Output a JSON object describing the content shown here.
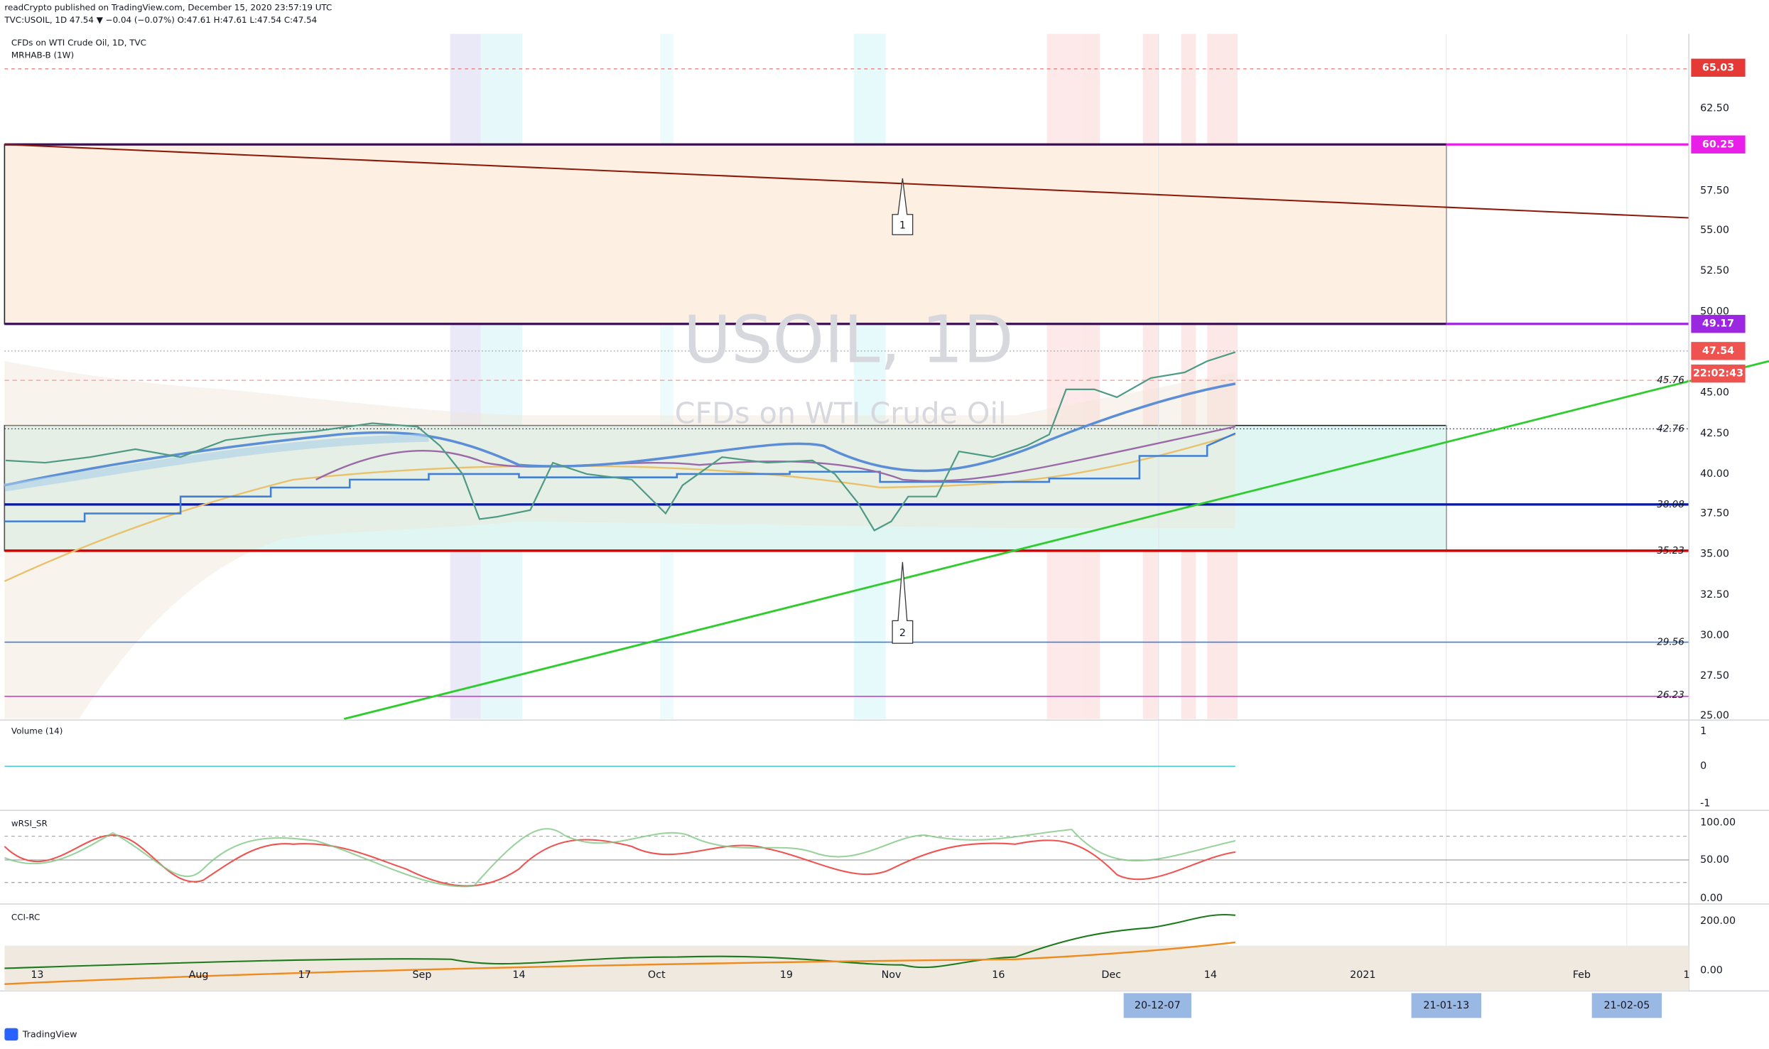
{
  "header": {
    "publisher": "readCrypto published on TradingView.com, December 15, 2020 23:57:19 UTC",
    "symbol_line": "TVC:USOIL, 1D  47.54  ▼ −0.04 (−0.07%)  O:47.61  H:47.61  L:47.54  C:47.54"
  },
  "legend": {
    "title": "CFDs on WTI Crude Oil, 1D, TVC",
    "indicator": "MRHAB-B (1W)"
  },
  "watermark": {
    "symbol": "USOIL, 1D",
    "name": "CFDs on WTI Crude Oil"
  },
  "callouts": [
    "1",
    "2"
  ],
  "price_axis": {
    "ticks": [
      "62.50",
      "57.50",
      "55.00",
      "52.50",
      "50.00",
      "45.00",
      "42.50",
      "40.00",
      "37.50",
      "35.00",
      "32.50",
      "30.00",
      "27.50",
      "25.00"
    ],
    "badges": [
      "65.03",
      "60.25",
      "49.17",
      "47.54",
      "22:02:43"
    ],
    "level_labels": [
      "45.76",
      "42.76",
      "38.08",
      "35.23",
      "29.56",
      "26.23"
    ]
  },
  "time_axis": {
    "labels": [
      "13",
      "Aug",
      "17",
      "Sep",
      "14",
      "Oct",
      "19",
      "Nov",
      "16",
      "Dec",
      "14",
      "2021",
      "Feb",
      "1"
    ],
    "badges": [
      "20-12-07",
      "21-01-13",
      "21-02-05"
    ]
  },
  "panes": {
    "volume": {
      "title": "Volume (14)",
      "ticks": [
        "1",
        "0",
        "-1"
      ]
    },
    "wrsi": {
      "title": "wRSI_SR",
      "ticks": [
        "100.00",
        "50.00",
        "0.00"
      ]
    },
    "cci": {
      "title": "CCI-RC",
      "ticks": [
        "200.00",
        "0.00"
      ]
    }
  },
  "footer": "TradingView"
}
